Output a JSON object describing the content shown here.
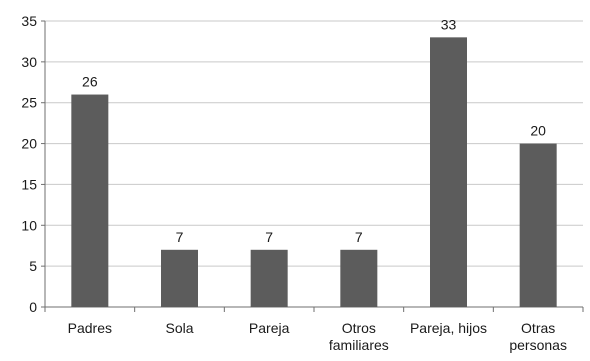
{
  "colors": {
    "bar": "#5c5c5c",
    "gridline": "#c9c9c9",
    "axis": "#6f6f6f",
    "text": "#1a1a1a"
  },
  "chart_data": {
    "type": "bar",
    "title": "",
    "xlabel": "",
    "ylabel": "",
    "categories": [
      [
        "Padres"
      ],
      [
        "Sola"
      ],
      [
        "Pareja"
      ],
      [
        "Otros",
        "familiares"
      ],
      [
        "Pareja, hijos"
      ],
      [
        "Otras",
        "personas"
      ]
    ],
    "values": [
      26,
      7,
      7,
      7,
      33,
      20
    ],
    "data_labels": [
      "26",
      "7",
      "7",
      "7",
      "33",
      "20"
    ],
    "ylim": [
      0,
      35
    ],
    "yticks": [
      0,
      5,
      10,
      15,
      20,
      25,
      30,
      35
    ],
    "ytick_labels": [
      "0",
      "5",
      "10",
      "15",
      "20",
      "25",
      "30",
      "35"
    ],
    "grid": true,
    "legend": "none"
  }
}
